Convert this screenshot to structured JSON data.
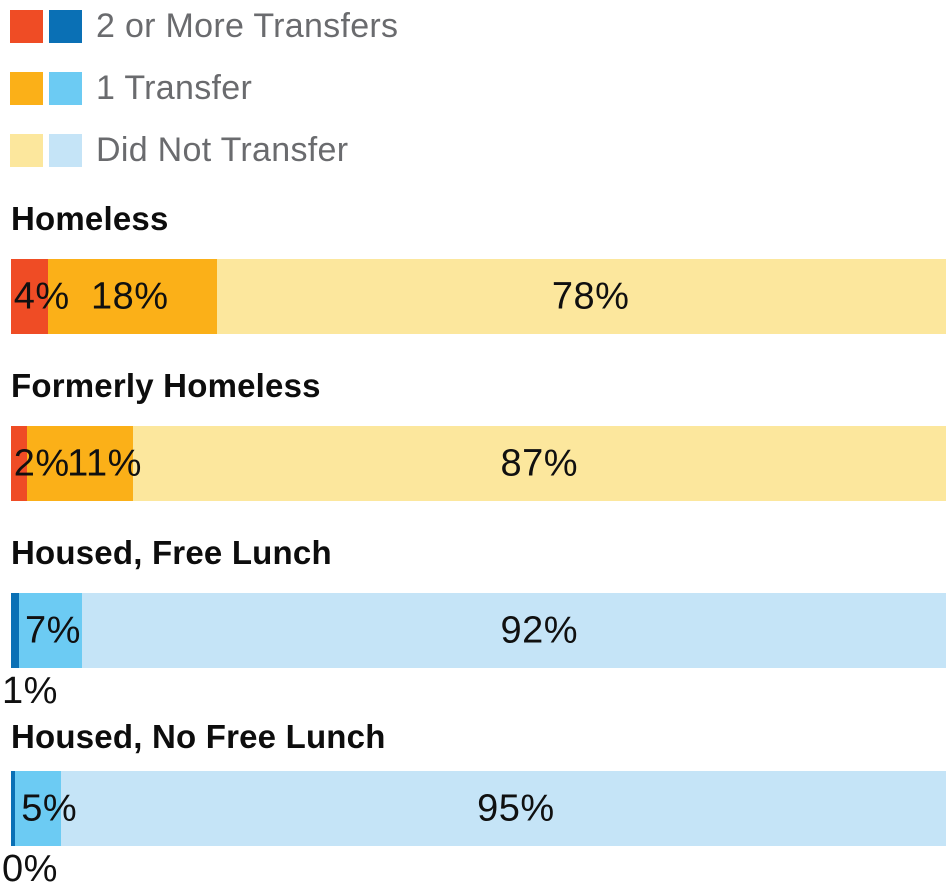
{
  "colors": {
    "red": "#ef4c25",
    "dark_blue": "#0a70b5",
    "orange": "#fbb018",
    "light_blue": "#6ccbf3",
    "pale_yellow": "#fce79d",
    "pale_blue": "#c5e4f7",
    "legend_text": "#6a6b6e",
    "label_text": "#101010"
  },
  "chart_data": {
    "type": "bar",
    "variant": "horizontal-stacked-percentage",
    "title": "",
    "xlabel": "",
    "ylabel": "",
    "axis_range_pct": [
      0,
      100
    ],
    "grid": false,
    "legend_position": "top-left",
    "series_names": [
      "2 or More Transfers",
      "1 Transfer",
      "Did Not Transfer"
    ],
    "categories": [
      "Homeless",
      "Formerly Homeless",
      "Housed, Free Lunch",
      "Housed, No Free Lunch"
    ],
    "legend": [
      {
        "label": "2 or More Transfers",
        "swatch_colors": [
          "#ef4c25",
          "#0a70b5"
        ]
      },
      {
        "label": "1 Transfer",
        "swatch_colors": [
          "#fbb018",
          "#6ccbf3"
        ]
      },
      {
        "label": "Did Not Transfer",
        "swatch_colors": [
          "#fce79d",
          "#c5e4f7"
        ]
      }
    ],
    "rows": [
      {
        "category": "Homeless",
        "segments": [
          {
            "series": "2 or More Transfers",
            "value": 4,
            "label": "4%",
            "color": "#ef4c25",
            "width_pct": 4,
            "label_placement": "inside",
            "label_align": "left",
            "label_x_pct": 0.3
          },
          {
            "series": "1 Transfer",
            "value": 18,
            "label": "18%",
            "color": "#fbb018",
            "width_pct": 18,
            "label_placement": "inside",
            "label_align": "center",
            "label_x_pct": 12.7
          },
          {
            "series": "Did Not Transfer",
            "value": 78,
            "label": "78%",
            "color": "#fce79d",
            "width_pct": 78,
            "label_placement": "inside",
            "label_align": "center",
            "label_x_pct": 62
          }
        ]
      },
      {
        "category": "Formerly Homeless",
        "segments": [
          {
            "series": "2 or More Transfers",
            "value": 2,
            "label": "2%",
            "color": "#ef4c25",
            "width_pct": 1.7,
            "label_placement": "inside",
            "label_align": "left",
            "label_x_pct": 0.3
          },
          {
            "series": "1 Transfer",
            "value": 11,
            "label": "11%",
            "color": "#fbb018",
            "width_pct": 11.3,
            "label_placement": "inside",
            "label_align": "center",
            "label_x_pct": 10
          },
          {
            "series": "Did Not Transfer",
            "value": 87,
            "label": "87%",
            "color": "#fce79d",
            "width_pct": 87,
            "label_placement": "inside",
            "label_align": "center",
            "label_x_pct": 56.5
          }
        ]
      },
      {
        "category": "Housed, Free Lunch",
        "segments": [
          {
            "series": "2 or More Transfers",
            "value": 1,
            "label": "1%",
            "color": "#0a70b5",
            "width_pct": 0.9,
            "label_placement": "below",
            "label_align": "left",
            "label_x_pct": 0
          },
          {
            "series": "1 Transfer",
            "value": 7,
            "label": "7%",
            "color": "#6ccbf3",
            "width_pct": 6.7,
            "label_placement": "inside",
            "label_align": "left",
            "label_x_pct": 1.5
          },
          {
            "series": "Did Not Transfer",
            "value": 92,
            "label": "92%",
            "color": "#c5e4f7",
            "width_pct": 92.4,
            "label_placement": "inside",
            "label_align": "center",
            "label_x_pct": 56.5
          }
        ]
      },
      {
        "category": "Housed, No Free Lunch",
        "segments": [
          {
            "series": "2 or More Transfers",
            "value": 0,
            "label": "0%",
            "color": "#0a70b5",
            "width_pct": 0.45,
            "label_placement": "below",
            "label_align": "left",
            "label_x_pct": 0
          },
          {
            "series": "1 Transfer",
            "value": 5,
            "label": "5%",
            "color": "#6ccbf3",
            "width_pct": 4.85,
            "label_placement": "inside",
            "label_align": "left",
            "label_x_pct": 1.1
          },
          {
            "series": "Did Not Transfer",
            "value": 95,
            "label": "95%",
            "color": "#c5e4f7",
            "width_pct": 94.7,
            "label_placement": "inside",
            "label_align": "center",
            "label_x_pct": 54
          }
        ]
      }
    ]
  }
}
